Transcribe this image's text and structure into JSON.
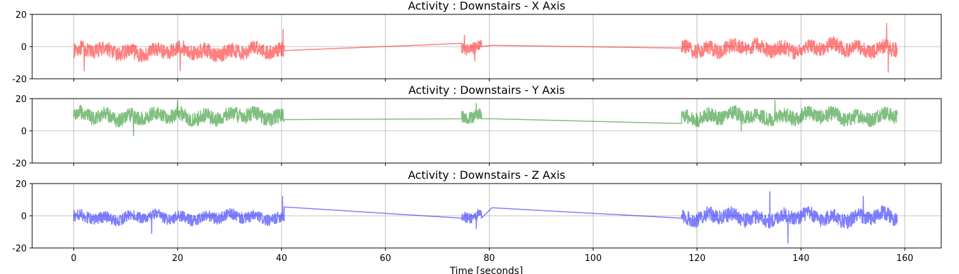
{
  "figure": {
    "xlabel": "Time [seconds]",
    "colors": {
      "x": "#ff0000",
      "y": "#008000",
      "z": "#0000ff"
    },
    "line_alpha": 0.5
  },
  "chart_data": [
    {
      "type": "line",
      "title": "Activity : Downstairs - X Axis",
      "axis": "x",
      "xlim": [
        -8,
        167
      ],
      "ylim": [
        -20,
        20
      ],
      "xticks": [
        0,
        20,
        40,
        60,
        80,
        100,
        120,
        140,
        160
      ],
      "yticks": [
        -20,
        0,
        20
      ],
      "grid": true,
      "segments": [
        {
          "start": 0.0,
          "end": 40.5,
          "mean": -3,
          "amp": 4.5,
          "peaks": [
            [
              40.3,
              10.5
            ],
            [
              2.0,
              -15
            ],
            [
              20.5,
              -15
            ]
          ]
        },
        {
          "start": 74.7,
          "end": 78.5,
          "mean": 0,
          "amp": 3.5,
          "peaks": [
            [
              75.2,
              7
            ],
            [
              77.2,
              -9
            ]
          ]
        },
        {
          "start": 117.0,
          "end": 158.6,
          "mean": -1,
          "amp": 4.5,
          "peaks": [
            [
              156.5,
              14.5
            ],
            [
              156.8,
              -16
            ]
          ]
        }
      ],
      "gaps": [
        {
          "x": [
            40.5,
            74.7
          ],
          "y": [
            -2.5,
            2.0
          ]
        },
        {
          "x": [
            78.5,
            80.5
          ],
          "y": [
            0.0,
            0.8
          ]
        },
        {
          "x": [
            80.5,
            117.0
          ],
          "y": [
            0.8,
            -1.0
          ]
        }
      ]
    },
    {
      "type": "line",
      "title": "Activity : Downstairs - Y Axis",
      "axis": "y",
      "xlim": [
        -8,
        167
      ],
      "ylim": [
        -20,
        20
      ],
      "xticks": [
        0,
        20,
        40,
        60,
        80,
        100,
        120,
        140,
        160
      ],
      "yticks": [
        -20,
        0,
        20
      ],
      "grid": true,
      "segments": [
        {
          "start": 0.0,
          "end": 40.5,
          "mean": 9,
          "amp": 4.5,
          "peaks": [
            [
              20.0,
              19
            ],
            [
              11.5,
              -3
            ]
          ]
        },
        {
          "start": 74.7,
          "end": 78.5,
          "mean": 9,
          "amp": 3.5,
          "peaks": [
            [
              77.5,
              17
            ]
          ]
        },
        {
          "start": 117.0,
          "end": 158.6,
          "mean": 9,
          "amp": 4.5,
          "peaks": [
            [
              135.0,
              19
            ],
            [
              128.5,
              0
            ]
          ]
        }
      ],
      "gaps": [
        {
          "x": [
            40.5,
            74.7
          ],
          "y": [
            7.0,
            7.5
          ]
        },
        {
          "x": [
            78.5,
            80.5
          ],
          "y": [
            7.5,
            7.5
          ]
        },
        {
          "x": [
            80.5,
            117.0
          ],
          "y": [
            7.5,
            4.5
          ]
        }
      ]
    },
    {
      "type": "line",
      "title": "Activity : Downstairs - Z Axis",
      "axis": "z",
      "xlim": [
        -8,
        167
      ],
      "ylim": [
        -20,
        20
      ],
      "xticks": [
        0,
        20,
        40,
        60,
        80,
        100,
        120,
        140,
        160
      ],
      "yticks": [
        -20,
        0,
        20
      ],
      "grid": true,
      "segments": [
        {
          "start": 0.0,
          "end": 40.5,
          "mean": -1,
          "amp": 3.5,
          "peaks": [
            [
              40.2,
              12
            ],
            [
              15.0,
              -11
            ]
          ]
        },
        {
          "start": 74.7,
          "end": 78.5,
          "mean": -1,
          "amp": 3.5,
          "peaks": [
            [
              77.5,
              -8
            ]
          ]
        },
        {
          "start": 117.0,
          "end": 158.6,
          "mean": -1,
          "amp": 4.5,
          "peaks": [
            [
              134.0,
              15
            ],
            [
              137.5,
              -17
            ],
            [
              152.0,
              12
            ]
          ]
        }
      ],
      "gaps": [
        {
          "x": [
            40.5,
            74.7
          ],
          "y": [
            5.5,
            -1.5
          ]
        },
        {
          "x": [
            78.5,
            80.5
          ],
          "y": [
            -1.5,
            5.0
          ]
        },
        {
          "x": [
            80.5,
            117.0
          ],
          "y": [
            5.0,
            -1.5
          ]
        }
      ]
    }
  ]
}
